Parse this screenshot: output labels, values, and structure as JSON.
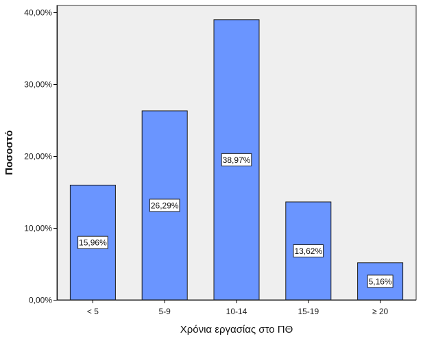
{
  "chart_data": {
    "type": "bar",
    "categories": [
      "< 5",
      "5-9",
      "10-14",
      "15-19",
      "≥ 20"
    ],
    "values": [
      15.96,
      26.29,
      38.97,
      13.62,
      5.16
    ],
    "data_labels": [
      "15,96%",
      "26,29%",
      "38,97%",
      "13,62%",
      "5,16%"
    ],
    "title": "",
    "xlabel": "Χρόνια εργασίας στο ΠΘ",
    "ylabel": "Ποσοστό",
    "ylim": [
      0,
      40
    ],
    "yticks": [
      {
        "value": 0,
        "label": "0,00%"
      },
      {
        "value": 10,
        "label": "10,00%"
      },
      {
        "value": 20,
        "label": "20,00%"
      },
      {
        "value": 30,
        "label": "30,00%"
      },
      {
        "value": 40,
        "label": "40,00%"
      }
    ],
    "grid": false,
    "legend": "none",
    "colors": {
      "bar_fill": "#6a95ff",
      "bar_stroke": "#1a1a1a",
      "plot_background": "#efefef",
      "axis": "#000000"
    }
  }
}
